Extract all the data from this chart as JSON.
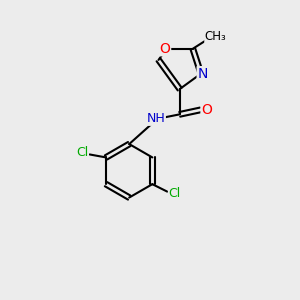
{
  "background_color": "#ececec",
  "bond_color": "#000000",
  "atom_colors": {
    "O": "#ff0000",
    "N": "#0000cc",
    "Cl": "#00aa00",
    "C": "#000000",
    "H": "#555555"
  },
  "font_size_atom": 9,
  "font_size_label": 8,
  "figsize": [
    3.0,
    3.0
  ],
  "dpi": 100
}
